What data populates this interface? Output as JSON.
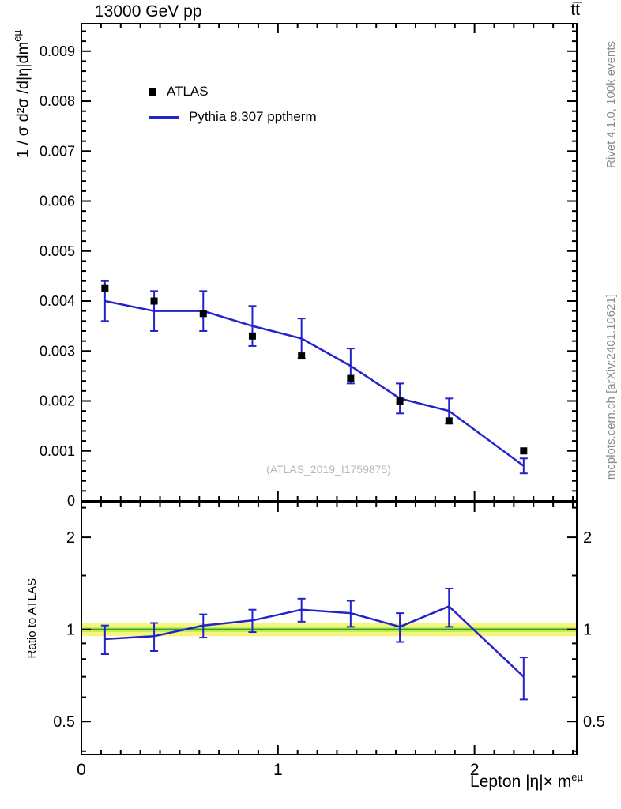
{
  "header": {
    "title_left": "13000 GeV pp",
    "title_right": "tt̅"
  },
  "side_notes": {
    "rivet": "Rivet 4.1.0,  100k events",
    "mcplots": "mcplots.cern.ch [arXiv:2401.10621]"
  },
  "watermark": "(ATLAS_2019_I1759875)",
  "legend": {
    "entries": [
      {
        "label": "ATLAS",
        "style": "marker",
        "color": "#000000"
      },
      {
        "label": "Pythia 8.307 pptherm",
        "style": "line",
        "color": "#2323cc"
      }
    ]
  },
  "axes": {
    "xlabel_base": "Lepton |η|× m",
    "xlabel_sup": "eµ",
    "ylabel_top_base": "1 / σ d²σ /d|η|dm",
    "ylabel_top_sup": "eµ",
    "ylabel_ratio": "Ratio to ATLAS"
  },
  "chart_data": {
    "type": "line",
    "title": "13000 GeV pp",
    "process_label": "ttbar",
    "xlabel": "Lepton |eta| x m^(e mu)",
    "ylabel": "1/sigma d^2 sigma / d|eta| dm^(e mu)",
    "legend_position": "top-left",
    "grid": false,
    "xlim": [
      0,
      2.52
    ],
    "xticks": [
      {
        "v": 0,
        "l": "0"
      },
      {
        "v": 1,
        "l": "1"
      },
      {
        "v": 2,
        "l": "2"
      }
    ],
    "x": [
      0.12,
      0.37,
      0.62,
      0.87,
      1.12,
      1.37,
      1.62,
      1.87,
      2.25
    ],
    "top_panel": {
      "yscale": "linear",
      "ylim": [
        0,
        0.00955
      ],
      "yticks": [
        {
          "v": 0,
          "l": "0"
        },
        {
          "v": 0.001,
          "l": "0.001"
        },
        {
          "v": 0.002,
          "l": "0.002"
        },
        {
          "v": 0.003,
          "l": "0.003"
        },
        {
          "v": 0.004,
          "l": "0.004"
        },
        {
          "v": 0.005,
          "l": "0.005"
        },
        {
          "v": 0.006,
          "l": "0.006"
        },
        {
          "v": 0.007,
          "l": "0.007"
        },
        {
          "v": 0.008,
          "l": "0.008"
        },
        {
          "v": 0.009,
          "l": "0.009"
        }
      ],
      "series": [
        {
          "name": "ATLAS",
          "style": "marker",
          "color": "#000000",
          "y": [
            0.00425,
            0.004,
            0.00375,
            0.0033,
            0.0029,
            0.00245,
            0.002,
            0.0016,
            0.001
          ],
          "yerr": [
            0,
            0,
            0,
            0,
            0,
            0,
            0,
            0,
            0
          ]
        },
        {
          "name": "Pythia 8.307 pptherm",
          "style": "line",
          "color": "#2323cc",
          "y": [
            0.004,
            0.0038,
            0.0038,
            0.0035,
            0.00325,
            0.0027,
            0.00205,
            0.0018,
            0.0007
          ],
          "yerr": [
            0.0004,
            0.0004,
            0.0004,
            0.0004,
            0.0004,
            0.00035,
            0.0003,
            0.00025,
            0.00015
          ]
        }
      ]
    },
    "ratio_panel": {
      "ylabel": "Ratio to ATLAS",
      "yscale": "log",
      "ylim": [
        0.39,
        2.6
      ],
      "yticks": [
        {
          "v": 0.5,
          "l": "0.5"
        },
        {
          "v": 1,
          "l": "1"
        },
        {
          "v": 2,
          "l": "2"
        }
      ],
      "band_outer": [
        0.95,
        1.05
      ],
      "band_inner": [
        0.98,
        1.02
      ],
      "band_outer_color": "#f6f67e",
      "band_inner_color": "#c9ea59",
      "band_line_color": "#27a327",
      "ratio": [
        0.93,
        0.95,
        1.03,
        1.07,
        1.16,
        1.13,
        1.02,
        1.19,
        0.7
      ],
      "ratio_err": [
        0.1,
        0.1,
        0.09,
        0.09,
        0.1,
        0.11,
        0.11,
        0.17,
        0.11
      ],
      "ratio_color": "#2323cc"
    }
  }
}
